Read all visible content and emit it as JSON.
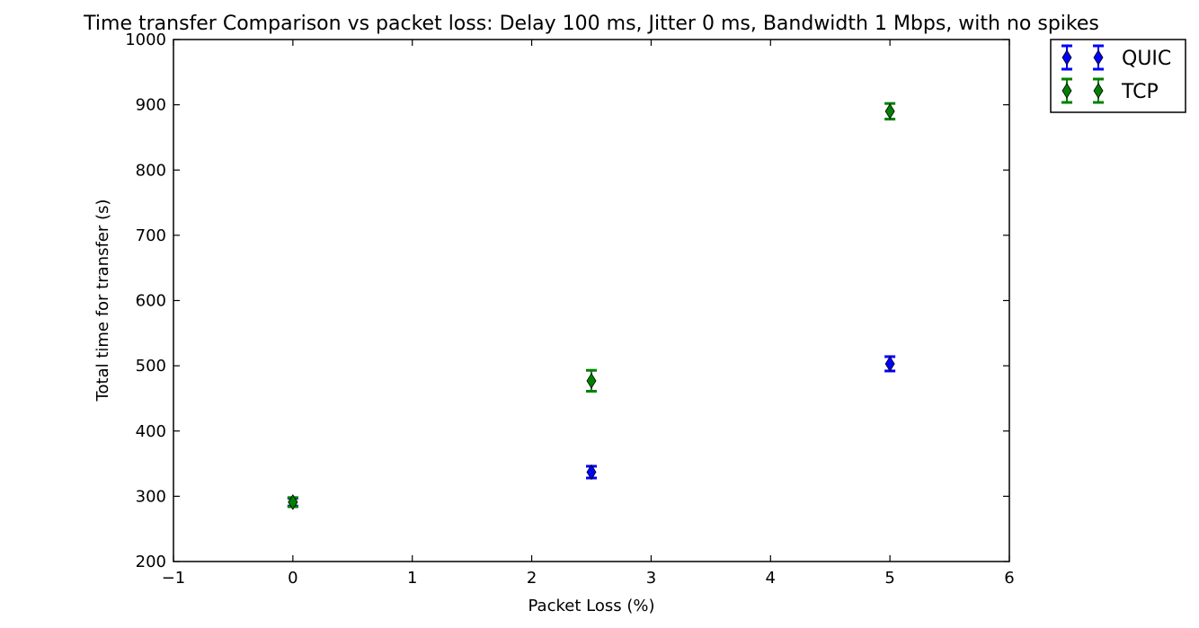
{
  "chart_data": {
    "type": "scatter",
    "title": "Time transfer Comparison vs packet loss: Delay 100 ms, Jitter 0 ms, Bandwidth 1 Mbps, with no spikes",
    "xlabel": "Packet Loss (%)",
    "ylabel": "Total time for transfer (s)",
    "xlim": [
      -1,
      6
    ],
    "ylim": [
      200,
      1000
    ],
    "xticks": [
      "−1",
      "0",
      "1",
      "2",
      "3",
      "4",
      "5",
      "6"
    ],
    "xtick_values": [
      -1,
      0,
      1,
      2,
      3,
      4,
      5,
      6
    ],
    "yticks": [
      "200",
      "300",
      "400",
      "500",
      "600",
      "700",
      "800",
      "900",
      "1000"
    ],
    "ytick_values": [
      200,
      300,
      400,
      500,
      600,
      700,
      800,
      900,
      1000
    ],
    "grid": false,
    "legend_position": "outside-top-right",
    "marker": "diamond with error bars",
    "series": [
      {
        "name": "QUIC",
        "color": "#0000ff",
        "x": [
          0,
          2.5,
          5
        ],
        "y": [
          291,
          337,
          503
        ],
        "yerr": [
          6,
          9,
          11
        ]
      },
      {
        "name": "TCP",
        "color": "#008000",
        "x": [
          0,
          2.5,
          5
        ],
        "y": [
          291,
          477,
          890
        ],
        "yerr": [
          7,
          16,
          12
        ]
      }
    ]
  }
}
